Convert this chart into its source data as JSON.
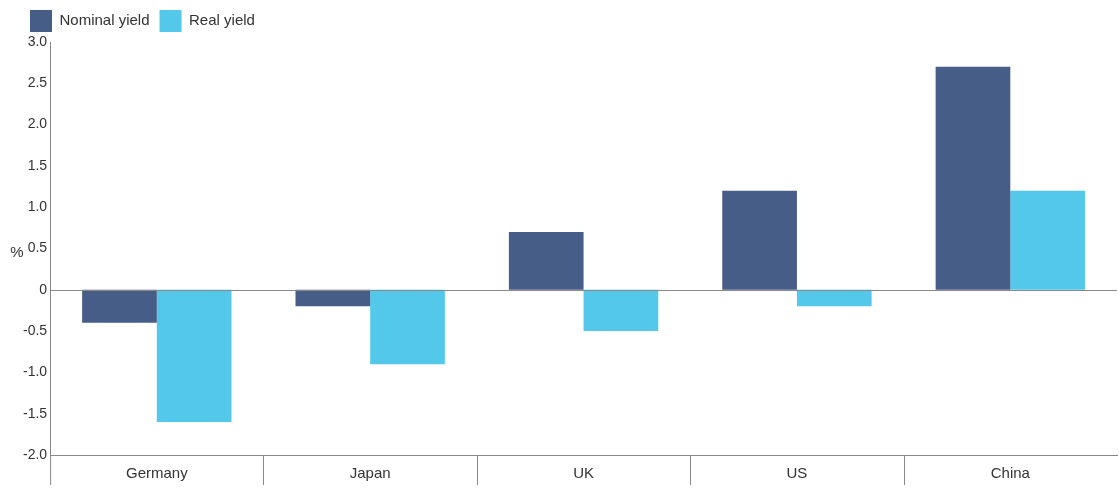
{
  "chart_data": {
    "type": "bar",
    "ylabel": "%",
    "categories": [
      "Germany",
      "Japan",
      "UK",
      "US",
      "China"
    ],
    "series": [
      {
        "name": "Nominal yield",
        "color": "#465d88",
        "values": [
          -0.4,
          -0.2,
          0.7,
          1.2,
          2.7
        ]
      },
      {
        "name": "Real yield",
        "color": "#53c8ea",
        "values": [
          -1.6,
          -0.9,
          -0.5,
          -0.2,
          1.2
        ]
      }
    ],
    "ylim": [
      -2.0,
      3.0
    ],
    "yticks": [
      {
        "value": -2,
        "label": "-2.0"
      },
      {
        "value": -1.5,
        "label": "-1.5"
      },
      {
        "value": -1,
        "label": "-1.0"
      },
      {
        "value": -0.5,
        "label": "-0.5"
      },
      {
        "value": 0,
        "label": "0"
      },
      {
        "value": 0.5,
        "label": "0.5"
      },
      {
        "value": 1,
        "label": "1.0"
      },
      {
        "value": 1.5,
        "label": "1.5"
      },
      {
        "value": 2,
        "label": "2.0"
      },
      {
        "value": 2.5,
        "label": "2.5"
      },
      {
        "value": 3,
        "label": "3.0"
      }
    ],
    "ref_lines": [
      {
        "axis": "y",
        "value": 0,
        "color": "#888888"
      }
    ],
    "grid": false,
    "legend": "top left"
  }
}
